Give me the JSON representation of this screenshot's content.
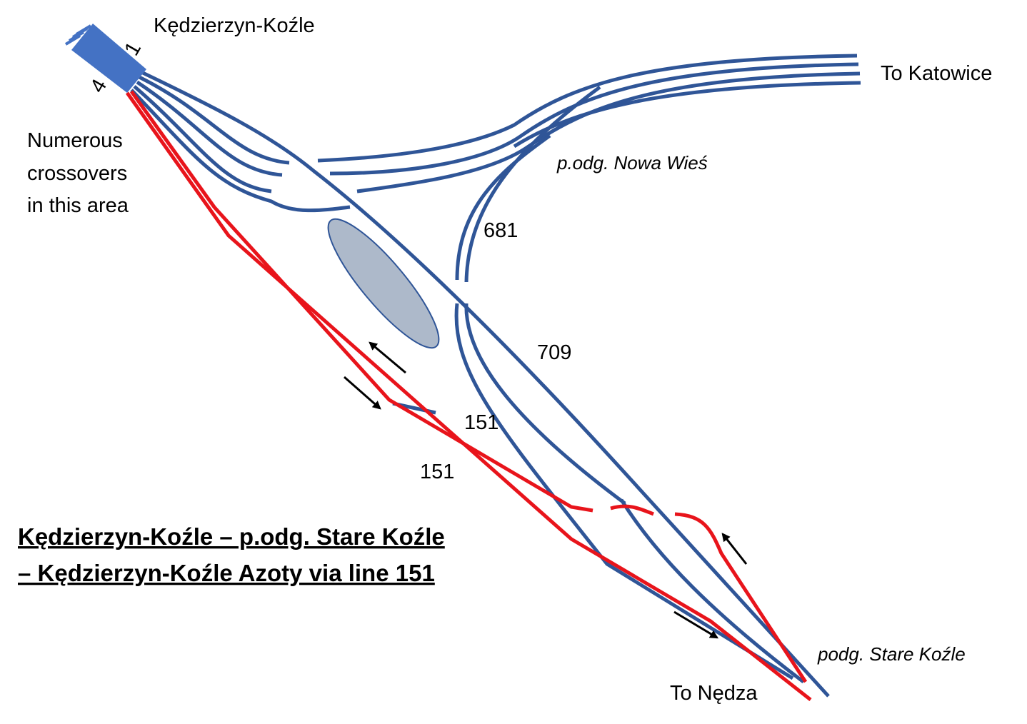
{
  "station": {
    "name": "Kędzierzyn-Koźle",
    "track_labels": [
      "1",
      "4"
    ]
  },
  "note": [
    "Numerous",
    "crossovers",
    "in this area"
  ],
  "destinations": {
    "east": "To Katowice",
    "south": "To Nędza"
  },
  "junctions": [
    "p.odg. Nowa Wieś",
    "podg. Stare Koźle"
  ],
  "line_numbers": [
    "681",
    "709",
    "151",
    "151"
  ],
  "title": [
    "Kędzierzyn-Koźle – p.odg. Stare Koźle",
    "– Kędzierzyn-Koźle Azoty via line 151"
  ]
}
